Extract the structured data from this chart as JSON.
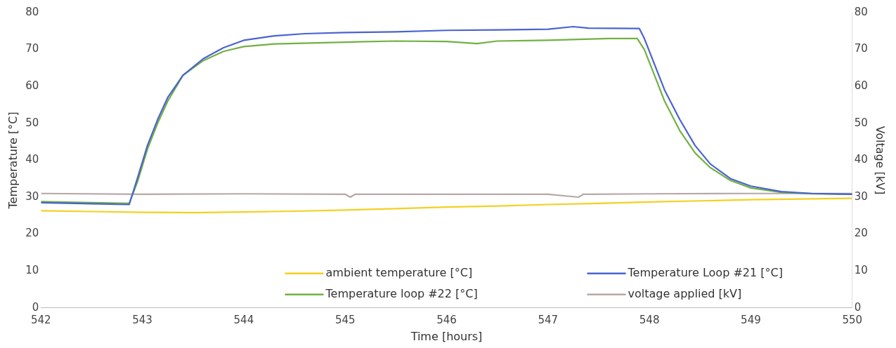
{
  "chart_data": {
    "type": "line",
    "xlabel": "Time [hours]",
    "ylabel": "Temperature [°C]",
    "y2label": "Voltage [kV]",
    "xlim": [
      542,
      550
    ],
    "xticks": [
      542,
      543,
      544,
      545,
      546,
      547,
      548,
      549,
      550
    ],
    "ylim": [
      0,
      80
    ],
    "yticks": [
      0,
      10,
      20,
      30,
      40,
      50,
      60,
      70,
      80
    ],
    "y2lim": [
      0,
      80
    ],
    "y2ticks": [
      0,
      10,
      20,
      30,
      40,
      50,
      60,
      70,
      80
    ],
    "grid": false,
    "legend": "bottom",
    "marker": "none",
    "line_style": "solid",
    "series": [
      {
        "name": "ambient temperature [°C]",
        "color": "#f5d020",
        "x": [
          542,
          542.5,
          543,
          543.5,
          544,
          544.5,
          545,
          545.5,
          546,
          546.5,
          547,
          547.5,
          548,
          548.5,
          549,
          549.5,
          550
        ],
        "values": [
          26.3,
          26.1,
          25.9,
          25.8,
          26,
          26.2,
          26.5,
          26.9,
          27.3,
          27.6,
          28,
          28.3,
          28.7,
          29,
          29.3,
          29.5,
          29.7
        ]
      },
      {
        "name": "Temperature Loop #21 [°C]",
        "color": "#4a63d0",
        "x": [
          542,
          542.5,
          542.87,
          542.95,
          543.05,
          543.15,
          543.25,
          543.4,
          543.6,
          543.8,
          544,
          544.3,
          544.6,
          545,
          545.5,
          546,
          546.5,
          547,
          547.25,
          547.4,
          547.9,
          547.95,
          548.05,
          548.15,
          548.3,
          548.45,
          548.6,
          548.8,
          549,
          549.3,
          549.6,
          550
        ],
        "values": [
          28.5,
          28.2,
          28,
          35,
          44,
          51,
          57,
          63,
          67.5,
          70.5,
          72.5,
          73.7,
          74.3,
          74.6,
          74.8,
          75.2,
          75.3,
          75.5,
          76.2,
          75.8,
          75.7,
          73,
          66,
          59,
          51,
          44,
          39,
          35,
          33,
          31.5,
          31,
          30.8
        ]
      },
      {
        "name": "Temperature loop #22 [°C]",
        "color": "#72b043",
        "x": [
          542,
          542.5,
          542.87,
          542.95,
          543.05,
          543.15,
          543.25,
          543.4,
          543.6,
          543.8,
          544,
          544.3,
          545,
          545.5,
          546,
          546.3,
          546.5,
          547,
          547.6,
          547.88,
          547.95,
          548.05,
          548.15,
          548.3,
          548.45,
          548.6,
          548.8,
          549,
          549.3,
          549.6,
          550
        ],
        "values": [
          28.8,
          28.5,
          28.3,
          34,
          43,
          50,
          56,
          63,
          67,
          69.5,
          70.8,
          71.5,
          72,
          72.3,
          72.2,
          71.6,
          72.3,
          72.5,
          73,
          73,
          70,
          63,
          56,
          48,
          42,
          38,
          34.5,
          32.5,
          31.3,
          30.9,
          30.8
        ]
      },
      {
        "name": "voltage applied [kV]",
        "color": "#b8a8a8",
        "axis": "y2",
        "x": [
          542,
          543,
          544,
          545,
          545.05,
          545.1,
          546,
          547,
          547.3,
          547.35,
          547.4,
          548,
          549,
          550
        ],
        "values": [
          31,
          30.8,
          30.9,
          30.8,
          30,
          30.8,
          30.8,
          30.8,
          30,
          30.8,
          30.8,
          30.9,
          31,
          31
        ]
      }
    ]
  }
}
